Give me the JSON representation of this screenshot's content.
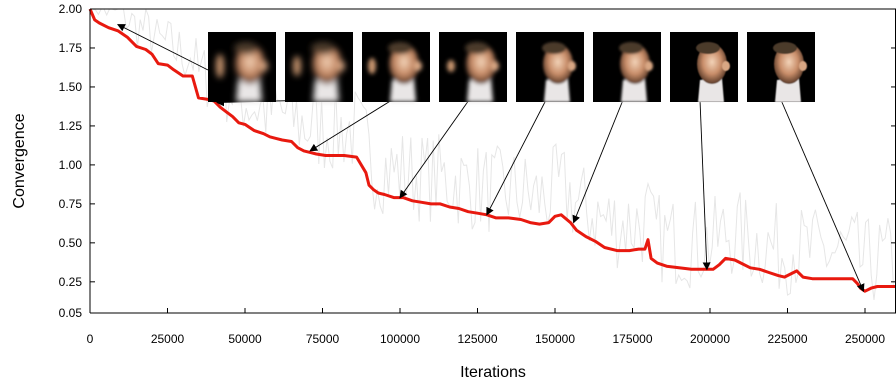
{
  "chart_data": {
    "type": "line",
    "title": "",
    "xlabel": "Iterations",
    "ylabel": "Convergence",
    "xlim": [
      0,
      260000
    ],
    "ylim": [
      0.05,
      2.0
    ],
    "x_ticks": [
      0,
      25000,
      50000,
      75000,
      100000,
      125000,
      150000,
      175000,
      200000,
      225000,
      250000
    ],
    "y_ticks": [
      0.05,
      0.25,
      0.5,
      0.75,
      1.0,
      1.25,
      1.5,
      1.75,
      2.0
    ],
    "x_tick_labels": [
      "0",
      "25000",
      "50000",
      "75000",
      "100000",
      "125000",
      "150000",
      "175000",
      "200000",
      "225000",
      "250000"
    ],
    "y_tick_labels": [
      "0.05",
      "0.25",
      "0.50",
      "0.75",
      "1.00",
      "1.25",
      "1.50",
      "1.75",
      "2.00"
    ],
    "grid": false,
    "legend": "none",
    "colors": {
      "main": "#e8190f",
      "noisy": "#e6e6e6",
      "arrow": "#000000"
    },
    "series": [
      {
        "values_x": [
          0,
          1500,
          3000,
          6000,
          9000,
          12000,
          15000,
          18000,
          20000,
          22000,
          25000,
          27000,
          30000,
          33000,
          35000,
          38000,
          40000,
          42000,
          44000,
          46000,
          48000,
          50000,
          53000,
          56000,
          58000,
          60000,
          62000,
          65000,
          67000,
          69000,
          71000,
          73000,
          76000,
          79000,
          82000,
          86000,
          89000,
          90000,
          91500,
          93000,
          95000,
          98000,
          101000,
          104000,
          107000,
          110000,
          113000,
          116000,
          119000,
          122000,
          125000,
          128000,
          131000,
          135000,
          139000,
          142000,
          145000,
          148000,
          150000,
          152000,
          155000,
          157000,
          160000,
          163000,
          166000,
          170000,
          174000,
          177000,
          179000,
          180000,
          181000,
          183000,
          186000,
          190000,
          194000,
          198000,
          201000,
          203000,
          205000,
          208000,
          210000,
          213000,
          216000,
          219000,
          222000,
          224000,
          226000,
          228000,
          230000,
          233000,
          237000,
          242000,
          246000,
          247500,
          248500,
          250000,
          252000,
          254000,
          256000,
          260000
        ],
        "values": [
          2.0,
          1.93,
          1.91,
          1.88,
          1.86,
          1.82,
          1.76,
          1.74,
          1.71,
          1.65,
          1.64,
          1.61,
          1.57,
          1.57,
          1.43,
          1.42,
          1.41,
          1.37,
          1.34,
          1.31,
          1.27,
          1.26,
          1.22,
          1.2,
          1.18,
          1.17,
          1.16,
          1.15,
          1.11,
          1.09,
          1.08,
          1.07,
          1.06,
          1.06,
          1.06,
          1.05,
          0.95,
          0.87,
          0.84,
          0.82,
          0.81,
          0.79,
          0.79,
          0.77,
          0.76,
          0.75,
          0.75,
          0.73,
          0.72,
          0.7,
          0.69,
          0.68,
          0.66,
          0.66,
          0.65,
          0.63,
          0.62,
          0.63,
          0.67,
          0.68,
          0.63,
          0.58,
          0.54,
          0.51,
          0.47,
          0.45,
          0.45,
          0.46,
          0.46,
          0.52,
          0.4,
          0.37,
          0.35,
          0.34,
          0.33,
          0.33,
          0.33,
          0.36,
          0.4,
          0.39,
          0.37,
          0.34,
          0.33,
          0.31,
          0.29,
          0.28,
          0.3,
          0.32,
          0.28,
          0.27,
          0.27,
          0.27,
          0.27,
          0.24,
          0.21,
          0.19,
          0.21,
          0.22,
          0.22,
          0.22
        ]
      }
    ],
    "noisy_seed": 7,
    "thumbnails": [
      {
        "image": "face-blur-1",
        "points_to": [
          9000,
          1.9
        ]
      },
      {
        "image": "face-blur-2",
        "points_to": [
          41000,
          1.4
        ]
      },
      {
        "image": "face-blur-3",
        "points_to": [
          71000,
          1.09
        ]
      },
      {
        "image": "face-blur-4",
        "points_to": [
          100000,
          0.79
        ]
      },
      {
        "image": "face-blur-5",
        "points_to": [
          128000,
          0.68
        ]
      },
      {
        "image": "face-blur-6",
        "points_to": [
          156000,
          0.63
        ]
      },
      {
        "image": "face-blur-7",
        "points_to": [
          199000,
          0.33
        ]
      },
      {
        "image": "face-blur-8",
        "points_to": [
          249500,
          0.19
        ]
      }
    ]
  }
}
